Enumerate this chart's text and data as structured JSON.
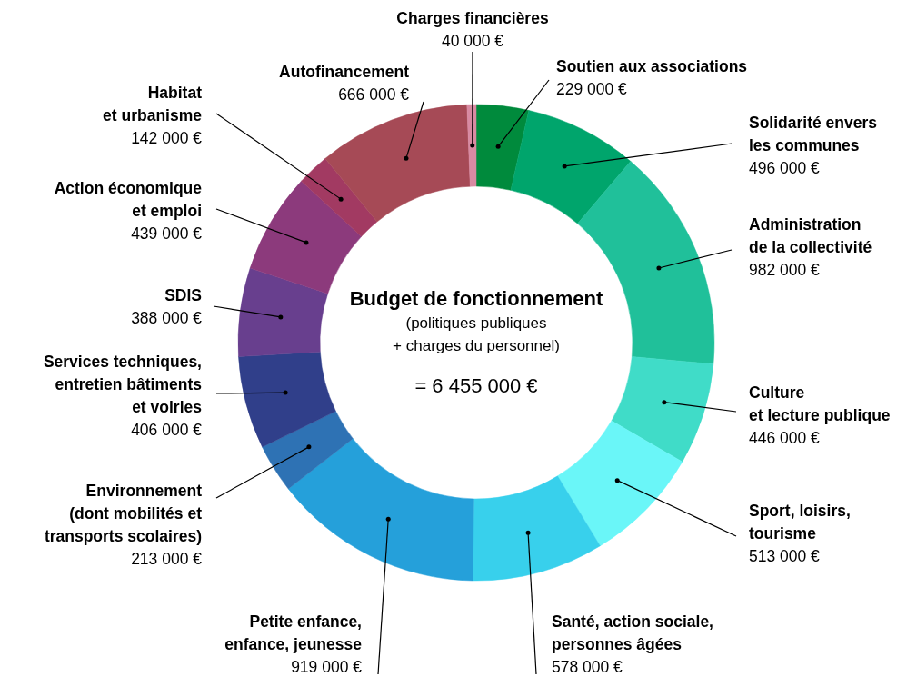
{
  "chart_data": {
    "type": "donut",
    "title": "Budget de fonctionnement",
    "subtitle": "(politiques publiques\n+ charges du personnel)",
    "annotations": [
      "= 6 455 000 €"
    ],
    "categories": [
      "Soutien aux associations",
      "Solidarité envers\nles communes",
      "Administration\nde la collectivité",
      "Culture\net lecture publique",
      "Sport, loisirs,\ntourisme",
      "Santé, action sociale,\npersonnes âgées",
      "Petite enfance,\nenfance, jeunesse",
      "Environnement\n(dont mobilités et\ntransports scolaires)",
      "Services techniques,\nentretien bâtiments\net voiries",
      "SDIS",
      "Action économique\net emploi",
      "Habitat\net urbanisme",
      "Autofinancement",
      "Charges financières"
    ],
    "values": [
      229000,
      496000,
      982000,
      446000,
      513000,
      578000,
      919000,
      213000,
      406000,
      388000,
      439000,
      142000,
      666000,
      40000
    ],
    "value_labels": [
      "229 000 €",
      "496 000 €",
      "982 000 €",
      "446 000 €",
      "513 000 €",
      "578 000 €",
      "919 000 €",
      "213 000 €",
      "406 000 €",
      "388 000 €",
      "439 000 €",
      "142 000 €",
      "666 000 €",
      "40 000 €"
    ],
    "colors": [
      "#008a3c",
      "#00a56c",
      "#20c09a",
      "#40dcc8",
      "#6af6f8",
      "#38d0ec",
      "#25a0da",
      "#2e72b4",
      "#303f8a",
      "#683f8e",
      "#8c3a7c",
      "#a23a62",
      "#a64a56",
      "#d88aa2"
    ]
  }
}
